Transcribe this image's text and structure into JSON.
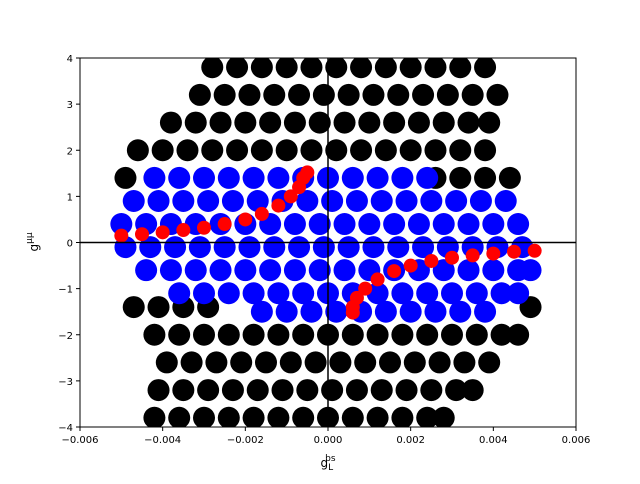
{
  "chart_data": {
    "type": "scatter",
    "xlabel": {
      "base": "g",
      "sub": "L",
      "sup": "bs"
    },
    "ylabel": {
      "base": "g",
      "sup": "μμ"
    },
    "xlim": [
      -0.006,
      0.006
    ],
    "ylim": [
      -4,
      4
    ],
    "xticks": [
      {
        "value": -0.006,
        "label": "−0.006"
      },
      {
        "value": -0.004,
        "label": "−0.004"
      },
      {
        "value": -0.002,
        "label": "−0.002"
      },
      {
        "value": 0,
        "label": "0.000"
      },
      0.002,
      0.004,
      0.006
    ],
    "yticks": [
      {
        "value": -4,
        "label": "−4"
      },
      {
        "value": -3,
        "label": "−3"
      },
      {
        "value": -2,
        "label": "−2"
      },
      {
        "value": -1,
        "label": "−1"
      },
      0,
      1,
      2,
      3,
      4
    ],
    "hlines": [
      0
    ],
    "vlines": [
      0
    ],
    "series": [
      {
        "color": "#000000",
        "x": [
          -0.0028,
          -0.0022,
          -0.0016,
          -0.001,
          -0.0004,
          0.0002,
          0.0008,
          0.0014,
          0.002,
          0.0026,
          0.0032,
          0.0038,
          -0.0031,
          -0.0025,
          -0.0019,
          -0.0013,
          -0.0007,
          -0.0001,
          0.0005,
          0.0011,
          0.0017,
          0.0023,
          0.0029,
          0.0035,
          0.0041,
          -0.0038,
          -0.0032,
          -0.0026,
          -0.002,
          -0.0014,
          -0.0008,
          -0.0002,
          0.0004,
          0.001,
          0.0016,
          0.0022,
          0.0028,
          0.0034,
          0.0039,
          -0.0046,
          -0.004,
          -0.0034,
          -0.0028,
          -0.0022,
          -0.0016,
          -0.001,
          -0.0004,
          0.0002,
          0.0008,
          0.0014,
          0.002,
          0.0026,
          0.0032,
          0.0038,
          -0.0049,
          0.0026,
          0.0032,
          0.0038,
          0.0044,
          -0.0047,
          -0.0041,
          -0.0035,
          -0.0029,
          0.0049,
          -0.0042,
          -0.0036,
          -0.003,
          -0.0024,
          -0.0018,
          -0.0012,
          -0.0006,
          0,
          0.0006,
          0.0012,
          0.0018,
          0.0024,
          0.003,
          0.0036,
          0.0042,
          0.0046,
          -0.0039,
          -0.0033,
          -0.0027,
          -0.0021,
          -0.0015,
          -0.0009,
          -0.0003,
          0.0003,
          0.0009,
          0.0015,
          0.0021,
          0.0027,
          0.0033,
          0.0039,
          -0.0041,
          -0.0035,
          -0.0029,
          -0.0023,
          -0.0017,
          -0.0011,
          -0.0005,
          0.0001,
          0.0007,
          0.0013,
          0.0019,
          0.0025,
          0.0031,
          0.0035,
          -0.0042,
          -0.0036,
          -0.003,
          -0.0024,
          -0.0018,
          -0.0012,
          -0.0006,
          0,
          0.0006,
          0.0012,
          0.0018,
          0.0024,
          0.0028
        ],
        "y": [
          3.8,
          3.8,
          3.8,
          3.8,
          3.8,
          3.8,
          3.8,
          3.8,
          3.8,
          3.8,
          3.8,
          3.8,
          3.2,
          3.2,
          3.2,
          3.2,
          3.2,
          3.2,
          3.2,
          3.2,
          3.2,
          3.2,
          3.2,
          3.2,
          3.2,
          2.6,
          2.6,
          2.6,
          2.6,
          2.6,
          2.6,
          2.6,
          2.6,
          2.6,
          2.6,
          2.6,
          2.6,
          2.6,
          2.6,
          2.0,
          2.0,
          2.0,
          2.0,
          2.0,
          2.0,
          2.0,
          2.0,
          2.0,
          2.0,
          2.0,
          2.0,
          2.0,
          2.0,
          2.0,
          1.4,
          1.4,
          1.4,
          1.4,
          1.4,
          -1.4,
          -1.4,
          -1.4,
          -1.4,
          -1.4,
          -2.0,
          -2.0,
          -2.0,
          -2.0,
          -2.0,
          -2.0,
          -2.0,
          -2.0,
          -2.0,
          -2.0,
          -2.0,
          -2.0,
          -2.0,
          -2.0,
          -2.0,
          -2.0,
          -2.6,
          -2.6,
          -2.6,
          -2.6,
          -2.6,
          -2.6,
          -2.6,
          -2.6,
          -2.6,
          -2.6,
          -2.6,
          -2.6,
          -2.6,
          -2.6,
          -3.2,
          -3.2,
          -3.2,
          -3.2,
          -3.2,
          -3.2,
          -3.2,
          -3.2,
          -3.2,
          -3.2,
          -3.2,
          -3.2,
          -3.2,
          -3.2,
          -3.8,
          -3.8,
          -3.8,
          -3.8,
          -3.8,
          -3.8,
          -3.8,
          -3.8,
          -3.8,
          -3.8,
          -3.8,
          -3.8,
          -3.8
        ]
      },
      {
        "color": "#0000ff",
        "x": [
          -0.0042,
          -0.0036,
          -0.003,
          -0.0024,
          -0.0018,
          -0.0012,
          -0.0006,
          0,
          0.0006,
          0.0012,
          0.0018,
          0.0024,
          -0.0047,
          -0.0041,
          -0.0035,
          -0.0029,
          -0.0023,
          -0.0017,
          -0.0011,
          -0.0005,
          0.0001,
          0.0007,
          0.0013,
          0.0019,
          0.0025,
          0.0031,
          0.0037,
          0.0043,
          -0.005,
          -0.0044,
          -0.0038,
          -0.0032,
          -0.0026,
          -0.002,
          -0.0014,
          -0.0008,
          -0.0002,
          0.0004,
          0.001,
          0.0016,
          0.0022,
          0.0028,
          0.0034,
          0.004,
          0.0046,
          -0.0049,
          -0.0043,
          -0.0037,
          -0.0031,
          -0.0025,
          -0.0019,
          -0.0013,
          -0.0007,
          -0.0001,
          0.0005,
          0.0011,
          0.0017,
          0.0023,
          0.0029,
          0.0035,
          0.0041,
          0.0047,
          -0.0044,
          -0.0038,
          -0.0032,
          -0.0026,
          -0.002,
          -0.0014,
          -0.0008,
          -0.0002,
          0.0004,
          0.001,
          0.0016,
          0.0022,
          0.0028,
          0.0034,
          0.004,
          0.0046,
          0.0049,
          -0.0036,
          -0.003,
          -0.0024,
          -0.0018,
          -0.0012,
          -0.0006,
          0,
          0.0006,
          0.0012,
          0.0018,
          0.0024,
          0.003,
          0.0036,
          0.0042,
          0.0046,
          -0.0016,
          -0.001,
          -0.0004,
          0.0002,
          0.0008,
          0.0014,
          0.002,
          0.0026,
          0.0032,
          0.0038
        ],
        "y": [
          1.4,
          1.4,
          1.4,
          1.4,
          1.4,
          1.4,
          1.4,
          1.4,
          1.4,
          1.4,
          1.4,
          1.4,
          0.9,
          0.9,
          0.9,
          0.9,
          0.9,
          0.9,
          0.9,
          0.9,
          0.9,
          0.9,
          0.9,
          0.9,
          0.9,
          0.9,
          0.9,
          0.9,
          0.4,
          0.4,
          0.4,
          0.4,
          0.4,
          0.4,
          0.4,
          0.4,
          0.4,
          0.4,
          0.4,
          0.4,
          0.4,
          0.4,
          0.4,
          0.4,
          0.4,
          -0.1,
          -0.1,
          -0.1,
          -0.1,
          -0.1,
          -0.1,
          -0.1,
          -0.1,
          -0.1,
          -0.1,
          -0.1,
          -0.1,
          -0.1,
          -0.1,
          -0.1,
          -0.1,
          -0.1,
          -0.6,
          -0.6,
          -0.6,
          -0.6,
          -0.6,
          -0.6,
          -0.6,
          -0.6,
          -0.6,
          -0.6,
          -0.6,
          -0.6,
          -0.6,
          -0.6,
          -0.6,
          -0.6,
          -0.6,
          -1.1,
          -1.1,
          -1.1,
          -1.1,
          -1.1,
          -1.1,
          -1.1,
          -1.1,
          -1.1,
          -1.1,
          -1.1,
          -1.1,
          -1.1,
          -1.1,
          -1.1,
          -1.5,
          -1.5,
          -1.5,
          -1.5,
          -1.5,
          -1.5,
          -1.5,
          -1.5,
          -1.5,
          -1.5
        ]
      },
      {
        "color": "#ff0000",
        "x": [
          -0.005,
          -0.0045,
          -0.004,
          -0.0035,
          -0.003,
          -0.0025,
          -0.002,
          -0.0016,
          -0.0012,
          -0.0009,
          -0.0007,
          -0.0006,
          -0.0005,
          0.005,
          0.0045,
          0.004,
          0.0035,
          0.003,
          0.0025,
          0.002,
          0.0016,
          0.0012,
          0.0009,
          0.0007,
          0.0006,
          0.0006
        ],
        "y": [
          0.15,
          0.18,
          0.22,
          0.27,
          0.32,
          0.4,
          0.5,
          0.62,
          0.8,
          1.0,
          1.2,
          1.4,
          1.52,
          -0.18,
          -0.2,
          -0.24,
          -0.28,
          -0.33,
          -0.4,
          -0.5,
          -0.62,
          -0.8,
          -1.0,
          -1.2,
          -1.4,
          -1.52
        ]
      }
    ]
  }
}
